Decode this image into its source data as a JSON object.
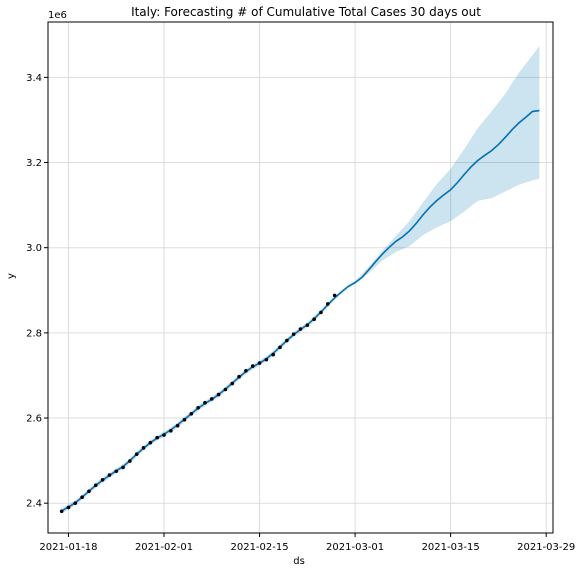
{
  "chart_data": {
    "type": "line",
    "title": "Italy: Forecasting # of Cumulative Total Cases 30 days out",
    "xlabel": "ds",
    "ylabel": "y",
    "y_offset_label": "1e6",
    "x_range": [
      "2021-01-15",
      "2021-03-30"
    ],
    "ylim": [
      2.33,
      3.53
    ],
    "y_scale": 1000000,
    "grid": true,
    "x_ticks": [
      "2021-01-18",
      "2021-02-01",
      "2021-02-15",
      "2021-03-01",
      "2021-03-15",
      "2021-03-29"
    ],
    "y_ticks": [
      2.4,
      2.6,
      2.8,
      3.0,
      3.2,
      3.4
    ],
    "y_tick_labels": [
      "2.4",
      "2.6",
      "2.8",
      "3.0",
      "3.2",
      "3.4"
    ],
    "colors": {
      "forecast": "#0072B2",
      "interval": "#0072B2",
      "observed": "#000000",
      "grid": "#dddddd"
    },
    "series": [
      {
        "kind": "observed",
        "x": [
          "2021-01-17",
          "2021-01-18",
          "2021-01-19",
          "2021-01-20",
          "2021-01-21",
          "2021-01-22",
          "2021-01-23",
          "2021-01-24",
          "2021-01-25",
          "2021-01-26",
          "2021-01-27",
          "2021-01-28",
          "2021-01-29",
          "2021-01-30",
          "2021-01-31",
          "2021-02-01",
          "2021-02-02",
          "2021-02-03",
          "2021-02-04",
          "2021-02-05",
          "2021-02-06",
          "2021-02-07",
          "2021-02-08",
          "2021-02-09",
          "2021-02-10",
          "2021-02-11",
          "2021-02-12",
          "2021-02-13",
          "2021-02-14",
          "2021-02-15",
          "2021-02-16",
          "2021-02-17",
          "2021-02-18",
          "2021-02-19",
          "2021-02-20",
          "2021-02-21",
          "2021-02-22",
          "2021-02-23",
          "2021-02-24",
          "2021-02-25",
          "2021-02-26"
        ],
        "y": [
          2.381,
          2.39,
          2.4,
          2.414,
          2.428,
          2.442,
          2.455,
          2.466,
          2.475,
          2.484,
          2.499,
          2.515,
          2.53,
          2.542,
          2.554,
          2.56,
          2.57,
          2.582,
          2.596,
          2.61,
          2.624,
          2.636,
          2.645,
          2.655,
          2.667,
          2.681,
          2.697,
          2.711,
          2.722,
          2.729,
          2.737,
          2.749,
          2.766,
          2.782,
          2.797,
          2.809,
          2.818,
          2.832,
          2.848,
          2.868,
          2.888
        ]
      },
      {
        "kind": "forecast",
        "x": [
          "2021-01-17",
          "2021-01-18",
          "2021-01-19",
          "2021-01-20",
          "2021-01-21",
          "2021-01-22",
          "2021-01-23",
          "2021-01-24",
          "2021-01-25",
          "2021-01-26",
          "2021-01-27",
          "2021-01-28",
          "2021-01-29",
          "2021-01-30",
          "2021-01-31",
          "2021-02-01",
          "2021-02-02",
          "2021-02-03",
          "2021-02-04",
          "2021-02-05",
          "2021-02-06",
          "2021-02-07",
          "2021-02-08",
          "2021-02-09",
          "2021-02-10",
          "2021-02-11",
          "2021-02-12",
          "2021-02-13",
          "2021-02-14",
          "2021-02-15",
          "2021-02-16",
          "2021-02-17",
          "2021-02-18",
          "2021-02-19",
          "2021-02-20",
          "2021-02-21",
          "2021-02-22",
          "2021-02-23",
          "2021-02-24",
          "2021-02-25",
          "2021-02-26",
          "2021-02-27",
          "2021-02-28",
          "2021-03-01",
          "2021-03-02",
          "2021-03-03",
          "2021-03-04",
          "2021-03-05",
          "2021-03-06",
          "2021-03-07",
          "2021-03-08",
          "2021-03-09",
          "2021-03-10",
          "2021-03-11",
          "2021-03-12",
          "2021-03-13",
          "2021-03-14",
          "2021-03-15",
          "2021-03-16",
          "2021-03-17",
          "2021-03-18",
          "2021-03-19",
          "2021-03-20",
          "2021-03-21",
          "2021-03-22",
          "2021-03-23",
          "2021-03-24",
          "2021-03-25",
          "2021-03-26",
          "2021-03-27",
          "2021-03-28"
        ],
        "y": [
          2.382,
          2.391,
          2.401,
          2.414,
          2.428,
          2.442,
          2.454,
          2.465,
          2.476,
          2.486,
          2.5,
          2.515,
          2.529,
          2.542,
          2.553,
          2.562,
          2.572,
          2.584,
          2.597,
          2.61,
          2.623,
          2.634,
          2.644,
          2.655,
          2.668,
          2.682,
          2.696,
          2.709,
          2.72,
          2.729,
          2.739,
          2.752,
          2.767,
          2.782,
          2.796,
          2.808,
          2.819,
          2.833,
          2.849,
          2.866,
          2.882,
          2.896,
          2.909,
          2.918,
          2.93,
          2.948,
          2.967,
          2.985,
          3.001,
          3.015,
          3.026,
          3.04,
          3.058,
          3.078,
          3.096,
          3.111,
          3.124,
          3.136,
          3.153,
          3.172,
          3.19,
          3.205,
          3.217,
          3.228,
          3.242,
          3.259,
          3.277,
          3.293,
          3.306,
          3.32,
          3.322
        ]
      },
      {
        "kind": "interval_upper",
        "x": [
          "2021-02-26",
          "2021-02-28",
          "2021-03-01",
          "2021-03-03",
          "2021-03-05",
          "2021-03-07",
          "2021-03-09",
          "2021-03-11",
          "2021-03-13",
          "2021-03-15",
          "2021-03-17",
          "2021-03-19",
          "2021-03-21",
          "2021-03-23",
          "2021-03-25",
          "2021-03-27",
          "2021-03-28"
        ],
        "y": [
          2.886,
          2.912,
          2.922,
          2.955,
          2.993,
          3.028,
          3.063,
          3.107,
          3.15,
          3.185,
          3.232,
          3.281,
          3.32,
          3.361,
          3.411,
          3.452,
          3.474
        ]
      },
      {
        "kind": "interval_lower",
        "x": [
          "2021-02-26",
          "2021-02-28",
          "2021-03-01",
          "2021-03-03",
          "2021-03-05",
          "2021-03-07",
          "2021-03-09",
          "2021-03-11",
          "2021-03-13",
          "2021-03-15",
          "2021-03-17",
          "2021-03-19",
          "2021-03-21",
          "2021-03-23",
          "2021-03-25",
          "2021-03-27",
          "2021-03-28"
        ],
        "y": [
          2.878,
          2.906,
          2.915,
          2.94,
          2.97,
          2.99,
          3.004,
          3.03,
          3.048,
          3.062,
          3.085,
          3.11,
          3.116,
          3.132,
          3.148,
          3.158,
          3.162
        ]
      }
    ]
  }
}
